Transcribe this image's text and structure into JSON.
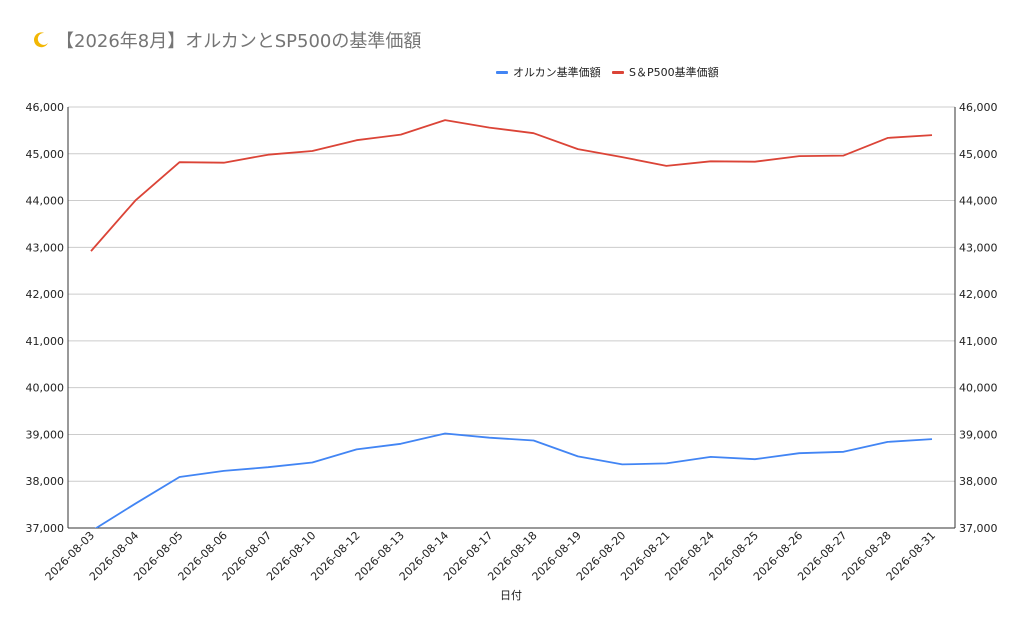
{
  "chart_data": {
    "type": "line",
    "title": "【2026年8月】オルカンとSP500の基準価額",
    "xlabel": "日付",
    "ylabel": "",
    "categories": [
      "2026-08-03",
      "2026-08-04",
      "2026-08-05",
      "2026-08-06",
      "2026-08-07",
      "2026-08-10",
      "2026-08-12",
      "2026-08-13",
      "2026-08-14",
      "2026-08-17",
      "2026-08-18",
      "2026-08-19",
      "2026-08-20",
      "2026-08-21",
      "2026-08-24",
      "2026-08-25",
      "2026-08-26",
      "2026-08-27",
      "2026-08-28",
      "2026-08-31"
    ],
    "ylim": [
      37000,
      46000
    ],
    "yticks": [
      37000,
      38000,
      39000,
      40000,
      41000,
      42000,
      43000,
      44000,
      45000,
      46000
    ],
    "ytick_labels": [
      "37,000",
      "38,000",
      "39,000",
      "40,000",
      "41,000",
      "42,000",
      "43,000",
      "44,000",
      "45,000",
      "46,000"
    ],
    "series": [
      {
        "name": "オルカン基準価額",
        "color": "#4285f4",
        "values": [
          36930,
          37520,
          38090,
          38220,
          38300,
          38400,
          38680,
          38800,
          39020,
          38930,
          38870,
          38530,
          38360,
          38380,
          38520,
          38470,
          38600,
          38630,
          38840,
          38900
        ]
      },
      {
        "name": "S＆P500基準価額",
        "color": "#db4437",
        "values": [
          42920,
          44000,
          44820,
          44810,
          44980,
          45060,
          45290,
          45410,
          45720,
          45560,
          45440,
          45100,
          44930,
          44740,
          44840,
          44830,
          44950,
          44960,
          45340,
          45400
        ]
      }
    ],
    "grid": true,
    "legend_position": "top",
    "secondary_axis": true
  },
  "icons": {
    "title_icon": "crescent-moon-icon"
  }
}
